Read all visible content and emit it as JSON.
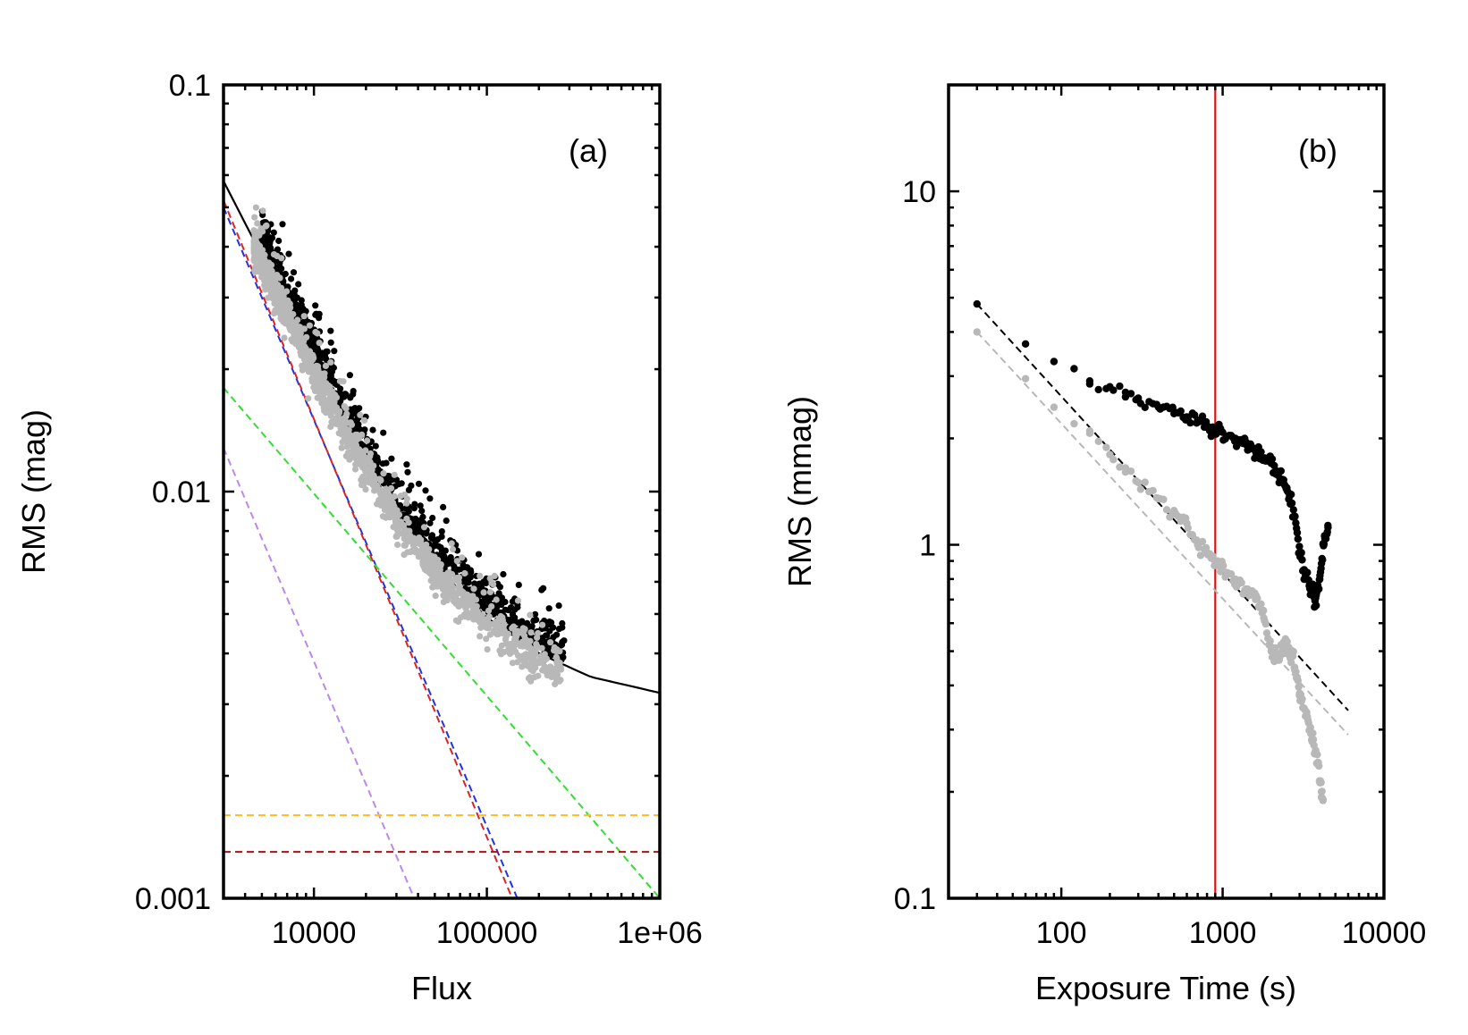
{
  "chart_data": [
    {
      "type": "scatter",
      "panel_label": "(a)",
      "xlabel": "Flux",
      "ylabel": "RMS (mag)",
      "xscale": "log",
      "yscale": "log",
      "xlim": [
        3000,
        1000000
      ],
      "ylim": [
        0.001,
        0.1
      ],
      "x_tick_labels": [
        {
          "value": 10000,
          "label": "10000"
        },
        {
          "value": 100000,
          "label": "100000"
        },
        {
          "value": 1000000,
          "label": "1e+06"
        }
      ],
      "y_tick_labels": [
        {
          "value": 0.1,
          "label": "0.1"
        },
        {
          "value": 0.01,
          "label": "0.01"
        },
        {
          "value": 0.001,
          "label": "0.001"
        }
      ],
      "model_lines": [
        {
          "name": "total noise model",
          "color": "#000000",
          "style": "solid",
          "points": [
            [
              3000,
              0.058
            ],
            [
              5000,
              0.038
            ],
            [
              10000,
              0.0205
            ],
            [
              20000,
              0.0118
            ],
            [
              30000,
              0.0088
            ],
            [
              50000,
              0.0066
            ],
            [
              100000,
              0.0049
            ],
            [
              200000,
              0.004
            ],
            [
              400000,
              0.0035
            ],
            [
              1000000,
              0.0032
            ]
          ]
        },
        {
          "name": "blue dashed",
          "color": "#2233dd",
          "style": "dashed",
          "points": [
            [
              3000,
              0.05
            ],
            [
              150000,
              0.001
            ]
          ]
        },
        {
          "name": "red dashed",
          "color": "#dd2222",
          "style": "dashed",
          "points": [
            [
              3000,
              0.052
            ],
            [
              140000,
              0.001
            ]
          ]
        },
        {
          "name": "green dashed",
          "color": "#33dd33",
          "style": "dashed",
          "points": [
            [
              3000,
              0.018
            ],
            [
              1000000,
              0.001
            ]
          ]
        },
        {
          "name": "purple dashed",
          "color": "#bb88ee",
          "style": "dashed",
          "points": [
            [
              3000,
              0.0128
            ],
            [
              38000,
              0.001
            ]
          ]
        },
        {
          "name": "orange dashed",
          "color": "#ffbb22",
          "style": "dashed",
          "points": [
            [
              3000,
              0.0016
            ],
            [
              1000000,
              0.0016
            ]
          ]
        },
        {
          "name": "dark red dashed",
          "color": "#aa1111",
          "style": "dashed",
          "points": [
            [
              3000,
              0.0013
            ],
            [
              1000000,
              0.0013
            ]
          ]
        }
      ],
      "scatter_series": [
        {
          "name": "black stars",
          "color": "#000000",
          "flux_range": [
            5000,
            280000
          ]
        },
        {
          "name": "grey stars",
          "color": "#b8b8b8",
          "flux_range": [
            4500,
            270000
          ]
        }
      ]
    },
    {
      "type": "scatter",
      "panel_label": "(b)",
      "xlabel": "Exposure Time (s)",
      "ylabel": "RMS (mmag)",
      "xscale": "log",
      "yscale": "log",
      "xlim": [
        20,
        10000
      ],
      "ylim": [
        0.1,
        20
      ],
      "x_tick_labels": [
        {
          "value": 100,
          "label": "100"
        },
        {
          "value": 1000,
          "label": "1000"
        },
        {
          "value": 10000,
          "label": "10000"
        }
      ],
      "y_tick_labels": [
        {
          "value": 10,
          "label": "10"
        },
        {
          "value": 1,
          "label": "1"
        },
        {
          "value": 0.1,
          "label": "0.1"
        }
      ],
      "vertical_line": {
        "x": 900,
        "color": "#dd1111"
      },
      "model_lines": [
        {
          "name": "black white-noise fit",
          "color": "#000000",
          "style": "dashed",
          "points": [
            [
              30,
              4.8
            ],
            [
              6000,
              0.34
            ]
          ]
        },
        {
          "name": "grey white-noise fit",
          "color": "#b8b8b8",
          "style": "dashed",
          "points": [
            [
              30,
              4.0
            ],
            [
              6000,
              0.29
            ]
          ]
        }
      ],
      "series": [
        {
          "name": "black",
          "color": "#000000",
          "points": [
            [
              30,
              4.8
            ],
            [
              60,
              3.7
            ],
            [
              90,
              3.3
            ],
            [
              120,
              3.15
            ],
            [
              150,
              2.85
            ],
            [
              200,
              2.8
            ],
            [
              250,
              2.7
            ],
            [
              300,
              2.6
            ],
            [
              400,
              2.45
            ],
            [
              500,
              2.35
            ],
            [
              600,
              2.3
            ],
            [
              700,
              2.25
            ],
            [
              800,
              2.15
            ],
            [
              900,
              2.12
            ],
            [
              1000,
              2.08
            ],
            [
              1200,
              2.0
            ],
            [
              1400,
              1.95
            ],
            [
              1600,
              1.85
            ],
            [
              1800,
              1.75
            ],
            [
              2000,
              1.7
            ],
            [
              2200,
              1.6
            ],
            [
              2500,
              1.45
            ],
            [
              2800,
              1.2
            ],
            [
              3000,
              0.95
            ],
            [
              3200,
              0.85
            ],
            [
              3500,
              0.75
            ],
            [
              3800,
              0.72
            ],
            [
              4000,
              0.8
            ],
            [
              4300,
              1.05
            ],
            [
              4500,
              1.12
            ]
          ]
        },
        {
          "name": "grey",
          "color": "#b8b8b8",
          "points": [
            [
              30,
              4.0
            ],
            [
              60,
              2.95
            ],
            [
              90,
              2.45
            ],
            [
              120,
              2.2
            ],
            [
              150,
              2.1
            ],
            [
              200,
              1.8
            ],
            [
              250,
              1.65
            ],
            [
              300,
              1.5
            ],
            [
              400,
              1.35
            ],
            [
              500,
              1.25
            ],
            [
              600,
              1.15
            ],
            [
              700,
              1.0
            ],
            [
              800,
              0.95
            ],
            [
              900,
              0.9
            ],
            [
              1000,
              0.85
            ],
            [
              1200,
              0.8
            ],
            [
              1400,
              0.75
            ],
            [
              1600,
              0.7
            ],
            [
              1800,
              0.62
            ],
            [
              2000,
              0.5
            ],
            [
              2200,
              0.48
            ],
            [
              2500,
              0.52
            ],
            [
              2800,
              0.45
            ],
            [
              3000,
              0.38
            ],
            [
              3300,
              0.33
            ],
            [
              3600,
              0.28
            ],
            [
              3900,
              0.24
            ],
            [
              4100,
              0.2
            ],
            [
              4200,
              0.19
            ]
          ]
        }
      ]
    }
  ]
}
